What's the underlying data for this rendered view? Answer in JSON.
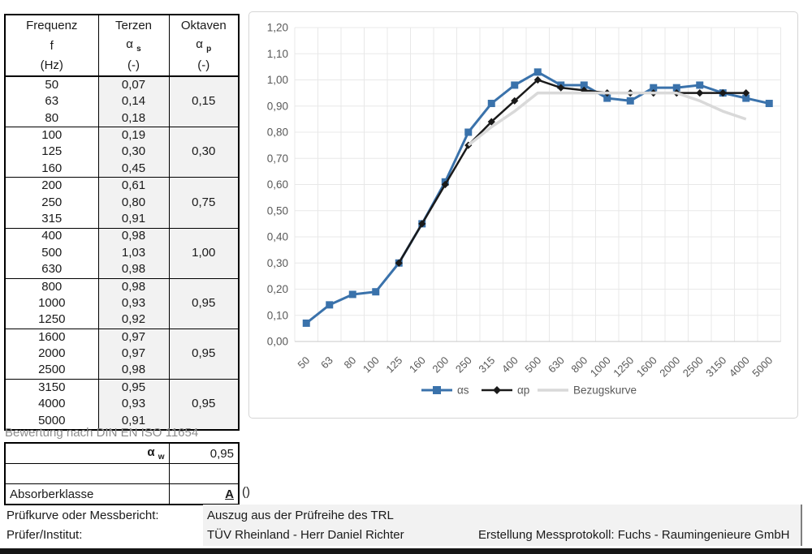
{
  "table": {
    "header": {
      "row1": [
        "Frequenz",
        "Terzen",
        "Oktaven"
      ],
      "row2_col1": "f",
      "alpha": "α",
      "sub_s": "s",
      "sub_p": "p",
      "row3": [
        "(Hz)",
        "(-)",
        "(-)"
      ]
    },
    "groups": [
      {
        "freqs": [
          "50",
          "63",
          "80"
        ],
        "terzen": [
          "0,07",
          "0,14",
          "0,18"
        ],
        "oktave": "0,15"
      },
      {
        "freqs": [
          "100",
          "125",
          "160"
        ],
        "terzen": [
          "0,19",
          "0,30",
          "0,45"
        ],
        "oktave": "0,30"
      },
      {
        "freqs": [
          "200",
          "250",
          "315"
        ],
        "terzen": [
          "0,61",
          "0,80",
          "0,91"
        ],
        "oktave": "0,75"
      },
      {
        "freqs": [
          "400",
          "500",
          "630"
        ],
        "terzen": [
          "0,98",
          "1,03",
          "0,98"
        ],
        "oktave": "1,00"
      },
      {
        "freqs": [
          "800",
          "1000",
          "1250"
        ],
        "terzen": [
          "0,98",
          "0,93",
          "0,92"
        ],
        "oktave": "0,95"
      },
      {
        "freqs": [
          "1600",
          "2000",
          "2500"
        ],
        "terzen": [
          "0,97",
          "0,97",
          "0,98"
        ],
        "oktave": "0,95"
      },
      {
        "freqs": [
          "3150",
          "4000",
          "5000"
        ],
        "terzen": [
          "0,95",
          "0,93",
          "0,91"
        ],
        "oktave": "0,95"
      }
    ]
  },
  "bewertung": {
    "title": "Bewertung nach DIN EN ISO 11654",
    "alpha_w_base": "α",
    "alpha_w_sub": "w",
    "alpha_w_value": "0,95",
    "absorberklasse_label": "Absorberklasse",
    "absorberklasse_value": "A",
    "suffix": "()"
  },
  "chart_data": {
    "type": "line",
    "title": "",
    "categories": [
      "50",
      "63",
      "80",
      "100",
      "125",
      "160",
      "200",
      "250",
      "315",
      "400",
      "500",
      "630",
      "800",
      "1000",
      "1250",
      "1600",
      "2000",
      "2500",
      "3150",
      "4000",
      "5000"
    ],
    "series": [
      {
        "name": "αs",
        "color": "#3a72ab",
        "marker": "square",
        "values": [
          0.07,
          0.14,
          0.18,
          0.19,
          0.3,
          0.45,
          0.61,
          0.8,
          0.91,
          0.98,
          1.03,
          0.98,
          0.98,
          0.93,
          0.92,
          0.97,
          0.97,
          0.98,
          0.95,
          0.93,
          0.91
        ]
      },
      {
        "name": "αp",
        "color": "#1a1a1a",
        "marker": "diamond",
        "values": [
          null,
          null,
          null,
          null,
          0.3,
          0.45,
          0.6,
          0.75,
          0.84,
          0.92,
          1.0,
          0.97,
          0.96,
          0.95,
          0.95,
          0.95,
          0.95,
          0.95,
          0.95,
          0.95,
          null
        ]
      },
      {
        "name": "Bezugskurve",
        "color": "#d9d9d9",
        "marker": "none",
        "values": [
          null,
          null,
          null,
          null,
          null,
          null,
          null,
          0.75,
          0.82,
          0.88,
          0.95,
          0.95,
          0.95,
          0.95,
          0.95,
          0.95,
          0.95,
          0.92,
          0.88,
          0.85,
          null
        ]
      }
    ],
    "ylim": [
      0,
      1.2
    ],
    "ytick_step": 0.1,
    "ytick_labels": [
      "0,00",
      "0,10",
      "0,20",
      "0,30",
      "0,40",
      "0,50",
      "0,60",
      "0,70",
      "0,80",
      "0,90",
      "1,00",
      "1,10",
      "1,20"
    ],
    "grid": true,
    "legend_position": "bottom",
    "axis_label_color": "#595959",
    "grid_color": "#e8e8e8"
  },
  "footer": {
    "row1": {
      "label": "Prüfkurve oder Messbericht:",
      "value": "Auszug aus der Prüfreihe des TRL"
    },
    "row2": {
      "label": "Prüfer/Institut:",
      "value": "TÜV Rheinland - Herr Daniel Richter",
      "value2": "Erstellung Messprotokoll: Fuchs - Raumingenieure GmbH"
    }
  }
}
